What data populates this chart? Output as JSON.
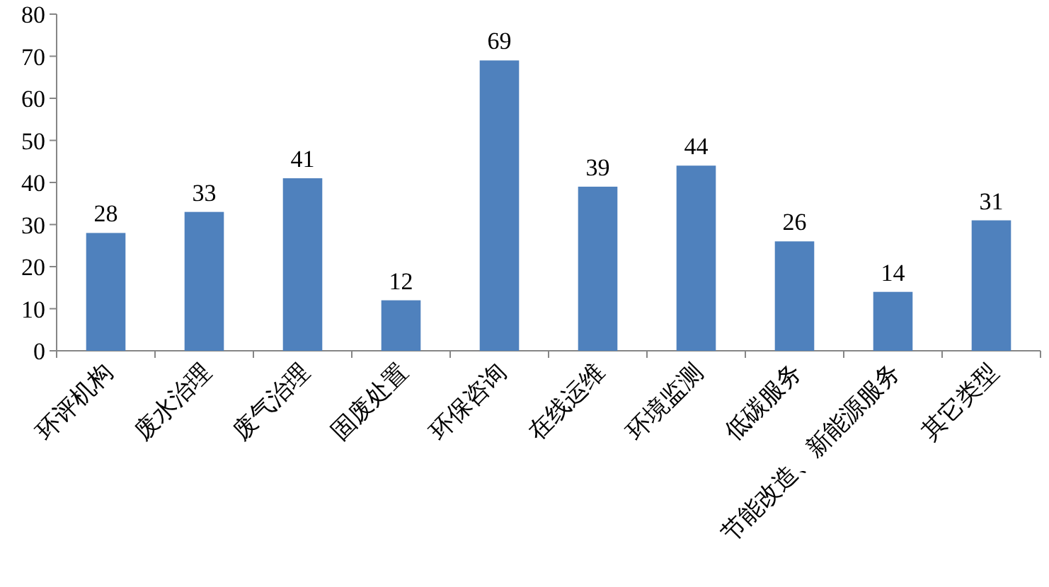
{
  "chart_data": {
    "type": "bar",
    "categories": [
      "环评机构",
      "废水治理",
      "废气治理",
      "固废处置",
      "环保咨询",
      "在线运维",
      "环境监测",
      "低碳服务",
      "节能改造、新能源服务",
      "其它类型"
    ],
    "values": [
      28,
      33,
      41,
      12,
      69,
      39,
      44,
      26,
      14,
      31
    ],
    "color": "#4f81bd",
    "ylim": [
      0,
      80
    ],
    "yticks": [
      0,
      10,
      20,
      30,
      40,
      50,
      60,
      70,
      80
    ],
    "data_labels": true
  }
}
